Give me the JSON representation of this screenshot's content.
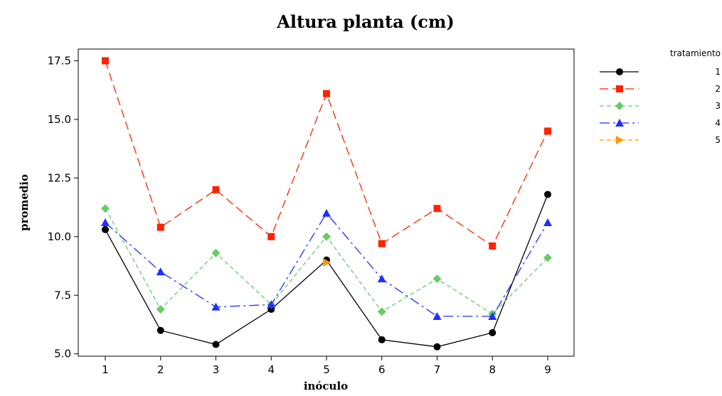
{
  "chart_data": {
    "type": "line",
    "title": "Altura planta (cm)",
    "xlabel": "inóculo",
    "ylabel": "promedio",
    "categories": [
      "1",
      "2",
      "3",
      "4",
      "5",
      "6",
      "7",
      "8",
      "9"
    ],
    "ylim": [
      4.9,
      18.0
    ],
    "yticks": [
      "5.0",
      "7.5",
      "10.0",
      "12.5",
      "15.0",
      "17.5"
    ],
    "legend": {
      "title": "tratamiento",
      "position": "right"
    },
    "series": [
      {
        "name": "1",
        "color": "#000000",
        "marker": "circle",
        "dash": "solid",
        "values": [
          10.3,
          6.0,
          5.4,
          6.9,
          9.0,
          5.6,
          5.3,
          5.9,
          11.8
        ]
      },
      {
        "name": "2",
        "color": "#ff2200",
        "marker": "square",
        "dash": "long-dash",
        "values": [
          17.5,
          10.4,
          12.0,
          10.0,
          16.1,
          9.7,
          11.2,
          9.6,
          14.5
        ]
      },
      {
        "name": "3",
        "color": "#66cc66",
        "marker": "diamond",
        "dash": "short-dash",
        "values": [
          11.2,
          6.9,
          9.3,
          7.1,
          10.0,
          6.8,
          8.2,
          6.7,
          9.1
        ]
      },
      {
        "name": "4",
        "color": "#1f2fff",
        "marker": "triangle-up",
        "dash": "dash-dot",
        "values": [
          10.6,
          8.5,
          7.0,
          7.1,
          11.0,
          8.2,
          6.6,
          6.6,
          10.6
        ]
      },
      {
        "name": "5",
        "color": "#ff9900",
        "marker": "triangle-right",
        "dash": "short-dash",
        "values": [
          null,
          null,
          null,
          null,
          8.9,
          null,
          null,
          null,
          null
        ]
      }
    ]
  }
}
